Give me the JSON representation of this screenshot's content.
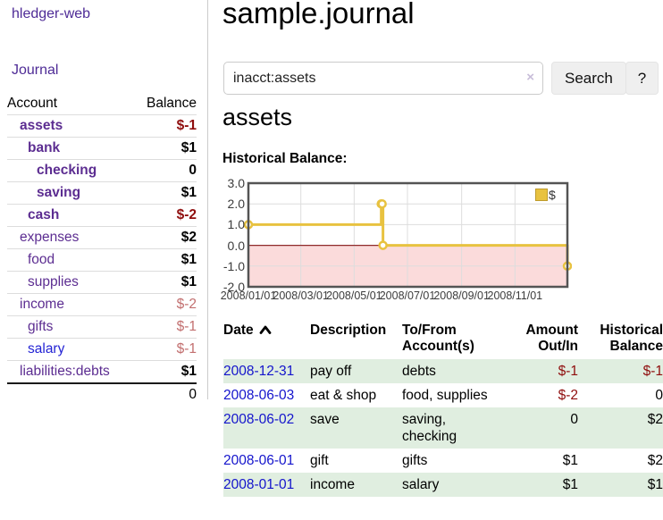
{
  "app": {
    "brand": "hledger-web"
  },
  "nav": {
    "journal": "Journal"
  },
  "sidebar": {
    "col_account": "Account",
    "col_balance": "Balance",
    "accounts": [
      {
        "name": "assets",
        "balance": "$-1"
      },
      {
        "name": "bank",
        "balance": "$1"
      },
      {
        "name": "checking",
        "balance": "0"
      },
      {
        "name": "saving",
        "balance": "$1"
      },
      {
        "name": "cash",
        "balance": "$-2"
      },
      {
        "name": "expenses",
        "balance": "$2"
      },
      {
        "name": "food",
        "balance": "$1"
      },
      {
        "name": "supplies",
        "balance": "$1"
      },
      {
        "name": "income",
        "balance": "$-2"
      },
      {
        "name": "gifts",
        "balance": "$-1"
      },
      {
        "name": "salary",
        "balance": "$-1"
      },
      {
        "name": "liabilities:debts",
        "balance": "$1"
      }
    ],
    "total": "0"
  },
  "main": {
    "title": "sample.journal",
    "search": {
      "value": "inacct:assets",
      "clear_icon": "×",
      "button_label": "Search",
      "help_label": "?"
    },
    "account_heading": "assets",
    "chart_label": "Historical Balance:"
  },
  "chart_data": {
    "type": "line",
    "title": "Historical Balance",
    "step": true,
    "series": [
      {
        "name": "$",
        "points": [
          [
            "2008-01-01",
            1
          ],
          [
            "2008-06-01",
            2
          ],
          [
            "2008-06-02",
            2
          ],
          [
            "2008-06-03",
            0
          ],
          [
            "2008-12-31",
            -1
          ]
        ]
      }
    ],
    "xrange": [
      "2008-01-01",
      "2008-12-31"
    ],
    "ylim": [
      -2,
      3
    ],
    "yticks": [
      3,
      2,
      1,
      0,
      -1,
      -2
    ],
    "ytick_labels": [
      "3.0",
      "2.0",
      "1.0",
      "0.0",
      "-1.0",
      "-2.0"
    ],
    "xticks": [
      {
        "date": "2008-01-01",
        "label": "2008/01/01"
      },
      {
        "date": "2008-03-01",
        "label": "2008/03/01"
      },
      {
        "date": "2008-05-01",
        "label": "2008/05/01"
      },
      {
        "date": "2008-07-01",
        "label": "2008/07/01"
      },
      {
        "date": "2008-09-01",
        "label": "2008/09/01"
      },
      {
        "date": "2008-11-01",
        "label": "2008/11/01"
      }
    ],
    "legend": {
      "label": "$",
      "position": "top-right"
    },
    "colors": {
      "line": "#E8C240",
      "marker_fill": "#FFFFFF",
      "negative_region": "#FBDBDB",
      "zero_line": "#8F2A2A",
      "grid": "#DDDDDD",
      "border": "#545454"
    }
  },
  "register": {
    "headers": {
      "date": "Date",
      "description": "Description",
      "accounts": "To/From Account(s)",
      "amount": "Amount Out/In",
      "balance": "Historical Balance"
    },
    "rows": [
      {
        "date": "2008-12-31",
        "description": "pay off",
        "accounts": "debts",
        "amount": "$-1",
        "balance": "$-1"
      },
      {
        "date": "2008-06-03",
        "description": "eat & shop",
        "accounts": "food, supplies",
        "amount": "$-2",
        "balance": "0"
      },
      {
        "date": "2008-06-02",
        "description": "save",
        "accounts": "saving, checking",
        "amount": "0",
        "balance": "$2"
      },
      {
        "date": "2008-06-01",
        "description": "gift",
        "accounts": "gifts",
        "amount": "$1",
        "balance": "$2"
      },
      {
        "date": "2008-01-01",
        "description": "income",
        "accounts": "salary",
        "amount": "$1",
        "balance": "$1"
      }
    ]
  },
  "colors": {
    "accent_purple": "#5C2D91",
    "link_blue": "#1414CC",
    "negative_strong": "#8F0D0D",
    "negative_faded": "#C26F6F",
    "row_stripe": "#E0EEE0"
  }
}
